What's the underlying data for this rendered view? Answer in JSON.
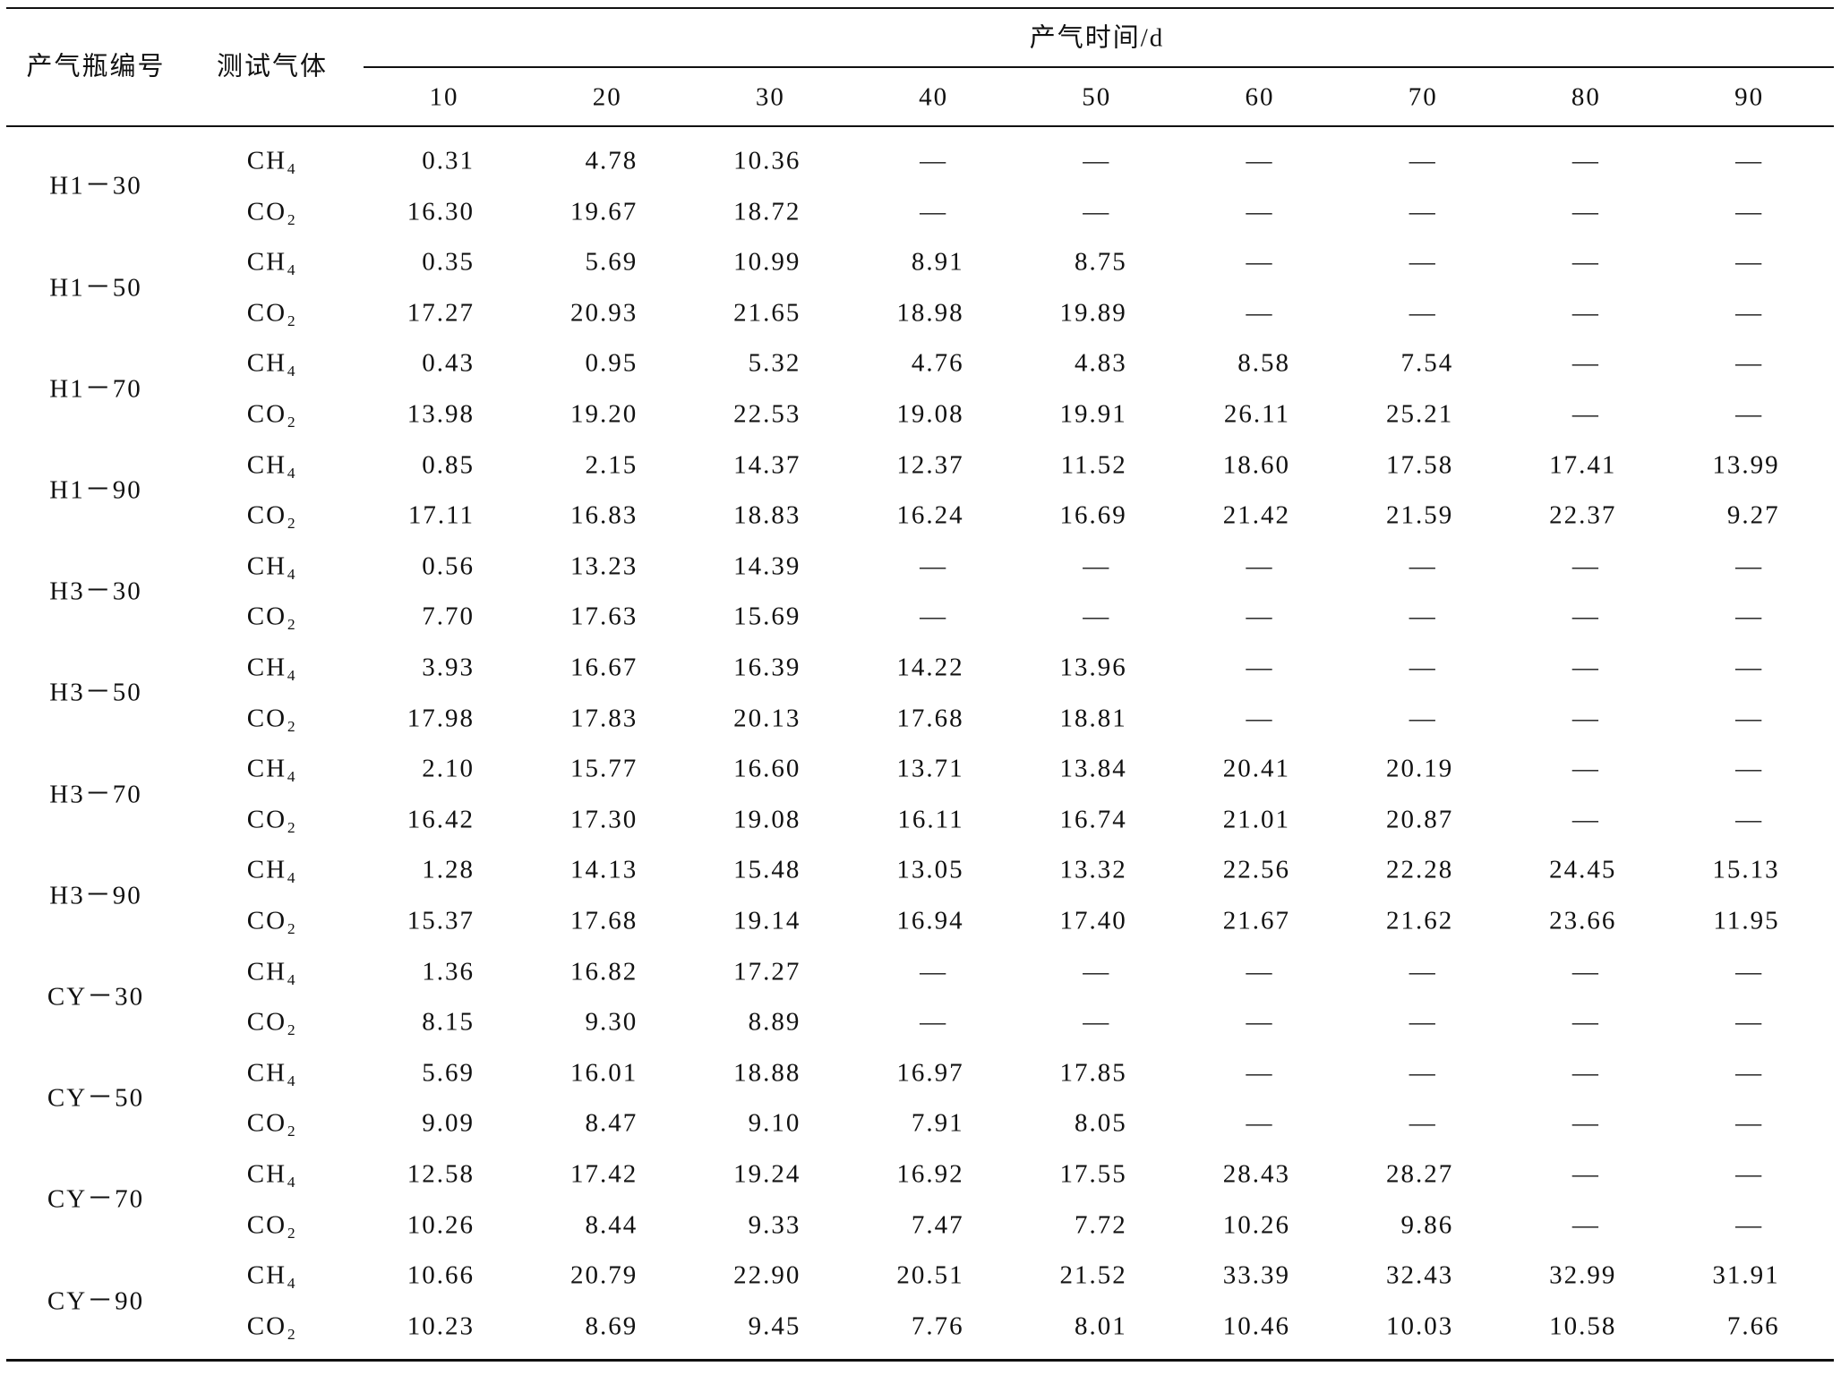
{
  "table": {
    "header": {
      "bottle": "产气瓶编号",
      "gas": "测试气体",
      "time": "产气时间/d",
      "days": [
        "10",
        "20",
        "30",
        "40",
        "50",
        "60",
        "70",
        "80",
        "90"
      ]
    },
    "rows": [
      {
        "bottle": "H1－30",
        "gases": [
          {
            "gas": "CH₄",
            "values": [
              "0.31",
              "4.78",
              "10.36",
              "—",
              "—",
              "—",
              "—",
              "—",
              "—"
            ]
          },
          {
            "gas": "CO₂",
            "values": [
              "16.30",
              "19.67",
              "18.72",
              "—",
              "—",
              "—",
              "—",
              "—",
              "—"
            ]
          }
        ]
      },
      {
        "bottle": "H1－50",
        "gases": [
          {
            "gas": "CH₄",
            "values": [
              "0.35",
              "5.69",
              "10.99",
              "8.91",
              "8.75",
              "—",
              "—",
              "—",
              "—"
            ]
          },
          {
            "gas": "CO₂",
            "values": [
              "17.27",
              "20.93",
              "21.65",
              "18.98",
              "19.89",
              "—",
              "—",
              "—",
              "—"
            ]
          }
        ]
      },
      {
        "bottle": "H1－70",
        "gases": [
          {
            "gas": "CH₄",
            "values": [
              "0.43",
              "0.95",
              "5.32",
              "4.76",
              "4.83",
              "8.58",
              "7.54",
              "—",
              "—"
            ]
          },
          {
            "gas": "CO₂",
            "values": [
              "13.98",
              "19.20",
              "22.53",
              "19.08",
              "19.91",
              "26.11",
              "25.21",
              "—",
              "—"
            ]
          }
        ]
      },
      {
        "bottle": "H1－90",
        "gases": [
          {
            "gas": "CH₄",
            "values": [
              "0.85",
              "2.15",
              "14.37",
              "12.37",
              "11.52",
              "18.60",
              "17.58",
              "17.41",
              "13.99"
            ]
          },
          {
            "gas": "CO₂",
            "values": [
              "17.11",
              "16.83",
              "18.83",
              "16.24",
              "16.69",
              "21.42",
              "21.59",
              "22.37",
              "9.27"
            ]
          }
        ]
      },
      {
        "bottle": "H3－30",
        "gases": [
          {
            "gas": "CH₄",
            "values": [
              "0.56",
              "13.23",
              "14.39",
              "—",
              "—",
              "—",
              "—",
              "—",
              "—"
            ]
          },
          {
            "gas": "CO₂",
            "values": [
              "7.70",
              "17.63",
              "15.69",
              "—",
              "—",
              "—",
              "—",
              "—",
              "—"
            ]
          }
        ]
      },
      {
        "bottle": "H3－50",
        "gases": [
          {
            "gas": "CH₄",
            "values": [
              "3.93",
              "16.67",
              "16.39",
              "14.22",
              "13.96",
              "—",
              "—",
              "—",
              "—"
            ]
          },
          {
            "gas": "CO₂",
            "values": [
              "17.98",
              "17.83",
              "20.13",
              "17.68",
              "18.81",
              "—",
              "—",
              "—",
              "—"
            ]
          }
        ]
      },
      {
        "bottle": "H3－70",
        "gases": [
          {
            "gas": "CH₄",
            "values": [
              "2.10",
              "15.77",
              "16.60",
              "13.71",
              "13.84",
              "20.41",
              "20.19",
              "—",
              "—"
            ]
          },
          {
            "gas": "CO₂",
            "values": [
              "16.42",
              "17.30",
              "19.08",
              "16.11",
              "16.74",
              "21.01",
              "20.87",
              "—",
              "—"
            ]
          }
        ]
      },
      {
        "bottle": "H3－90",
        "gases": [
          {
            "gas": "CH₄",
            "values": [
              "1.28",
              "14.13",
              "15.48",
              "13.05",
              "13.32",
              "22.56",
              "22.28",
              "24.45",
              "15.13"
            ]
          },
          {
            "gas": "CO₂",
            "values": [
              "15.37",
              "17.68",
              "19.14",
              "16.94",
              "17.40",
              "21.67",
              "21.62",
              "23.66",
              "11.95"
            ]
          }
        ]
      },
      {
        "bottle": "CY－30",
        "gases": [
          {
            "gas": "CH₄",
            "values": [
              "1.36",
              "16.82",
              "17.27",
              "—",
              "—",
              "—",
              "—",
              "—",
              "—"
            ]
          },
          {
            "gas": "CO₂",
            "values": [
              "8.15",
              "9.30",
              "8.89",
              "—",
              "—",
              "—",
              "—",
              "—",
              "—"
            ]
          }
        ]
      },
      {
        "bottle": "CY－50",
        "gases": [
          {
            "gas": "CH₄",
            "values": [
              "5.69",
              "16.01",
              "18.88",
              "16.97",
              "17.85",
              "—",
              "—",
              "—",
              "—"
            ]
          },
          {
            "gas": "CO₂",
            "values": [
              "9.09",
              "8.47",
              "9.10",
              "7.91",
              "8.05",
              "—",
              "—",
              "—",
              "—"
            ]
          }
        ]
      },
      {
        "bottle": "CY－70",
        "gases": [
          {
            "gas": "CH₄",
            "values": [
              "12.58",
              "17.42",
              "19.24",
              "16.92",
              "17.55",
              "28.43",
              "28.27",
              "—",
              "—"
            ]
          },
          {
            "gas": "CO₂",
            "values": [
              "10.26",
              "8.44",
              "9.33",
              "7.47",
              "7.72",
              "10.26",
              "9.86",
              "—",
              "—"
            ]
          }
        ]
      },
      {
        "bottle": "CY－90",
        "gases": [
          {
            "gas": "CH₄",
            "values": [
              "10.66",
              "20.79",
              "22.90",
              "20.51",
              "21.52",
              "33.39",
              "32.43",
              "32.99",
              "31.91"
            ]
          },
          {
            "gas": "CO₂",
            "values": [
              "10.23",
              "8.69",
              "9.45",
              "7.76",
              "8.01",
              "10.46",
              "10.03",
              "10.58",
              "7.66"
            ]
          }
        ]
      }
    ]
  }
}
